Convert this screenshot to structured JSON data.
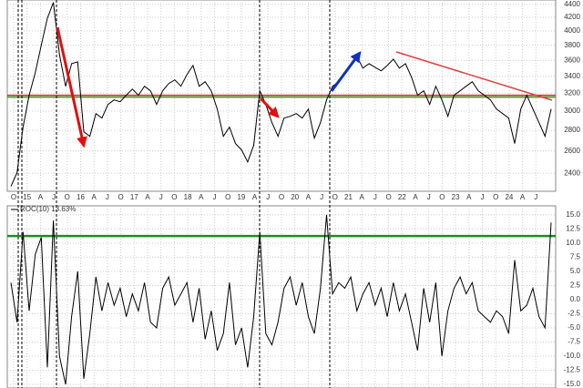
{
  "chart_data": [
    {
      "type": "line",
      "log_scale": true,
      "grid": true,
      "xtick_labels": [
        "O",
        "15",
        "A",
        "J",
        "O",
        "16",
        "A",
        "J",
        "O",
        "17",
        "A",
        "J",
        "O",
        "18",
        "A",
        "J",
        "O",
        "19",
        "A",
        "J",
        "O",
        "20",
        "A",
        "J",
        "O",
        "21",
        "A",
        "J",
        "O",
        "22",
        "A",
        "J",
        "O",
        "23",
        "A",
        "J",
        "O",
        "24",
        "A",
        "J"
      ],
      "ylim": [
        2250,
        4470
      ],
      "yticks": [
        2400,
        2600,
        2800,
        3000,
        3200,
        3400,
        3600,
        3800,
        4000,
        4200,
        4400
      ],
      "series": [
        {
          "color": "#000000",
          "values": [
            2290,
            2405,
            2832,
            3175,
            3443,
            3800,
            4187,
            4430,
            3675,
            3280,
            3557,
            3580,
            2785,
            2741,
            2974,
            2926,
            3073,
            3123,
            3103,
            3175,
            3247,
            3175,
            3280,
            3227,
            3073,
            3227,
            3312,
            3356,
            3280,
            3420,
            3534,
            3280,
            3334,
            3227,
            3023,
            2741,
            2832,
            2670,
            2610,
            2500,
            2653,
            3227,
            3073,
            2879,
            2741,
            2926,
            2945,
            2974,
            2926,
            3023,
            2723,
            2879,
            3123,
            3280,
            3334,
            3443,
            3534,
            3650,
            3500,
            3557,
            3511,
            3466,
            3534,
            3616,
            3500,
            3557,
            3388,
            3175,
            3227,
            3073,
            3280,
            3123,
            2945,
            3175,
            3227,
            3280,
            3334,
            3227,
            3175,
            3123,
            3023,
            2974,
            2926,
            2670,
            3023,
            3175,
            3023,
            2879,
            2741,
            3023
          ]
        }
      ],
      "levels": [
        {
          "value": 3175,
          "color": "#d62728"
        },
        {
          "value": 3155,
          "color": "#2ca02c"
        }
      ]
    },
    {
      "type": "line",
      "title": "ROC(10) 13.63%",
      "grid": true,
      "ylim": [
        -15.65,
        16.6
      ],
      "yticks": [
        {
          "value": 15,
          "label": "15.0"
        },
        {
          "value": 12.5,
          "label": "12.5"
        },
        {
          "value": 10,
          "label": "10.0"
        },
        {
          "value": 7.5,
          "label": "7.5"
        },
        {
          "value": 5,
          "label": "5.0"
        },
        {
          "value": 2.5,
          "label": "2.5"
        },
        {
          "value": 0,
          "label": "0.0"
        },
        {
          "value": -2.5,
          "label": "-2.5"
        },
        {
          "value": -5,
          "label": "-5.0"
        },
        {
          "value": -7.5,
          "label": "-7.5"
        },
        {
          "value": -10,
          "label": "-10.0"
        },
        {
          "value": -12.5,
          "label": "-12.5"
        },
        {
          "value": -15,
          "label": "-15.0"
        }
      ],
      "series": [
        {
          "color": "#000000",
          "values": [
            3,
            -4,
            12,
            -2,
            8,
            11,
            -12,
            14,
            -10,
            -15,
            -3,
            5,
            -14,
            -6,
            4,
            -2,
            3,
            -1,
            2,
            -3,
            1,
            -2,
            3,
            -4,
            -5,
            2,
            4,
            -1,
            1,
            3,
            -4,
            2,
            -7,
            -2,
            -9,
            -6,
            3,
            -8,
            -5,
            -12,
            -3,
            12,
            -6,
            -8,
            -4,
            2,
            4,
            -1,
            3,
            -3,
            -6,
            2,
            15,
            1,
            3,
            2,
            4,
            -2,
            1,
            3,
            -1,
            2,
            -3,
            3,
            -2,
            1,
            -4,
            -9,
            2,
            -4,
            3,
            -10,
            -2,
            2,
            4,
            1,
            3,
            -2,
            -3,
            -4,
            -2,
            -3,
            -6,
            7,
            -2,
            -1,
            2,
            -3,
            -5,
            13.63
          ]
        }
      ],
      "levels": [
        {
          "value": 11.25,
          "color": "#1e8c1e"
        }
      ]
    }
  ]
}
